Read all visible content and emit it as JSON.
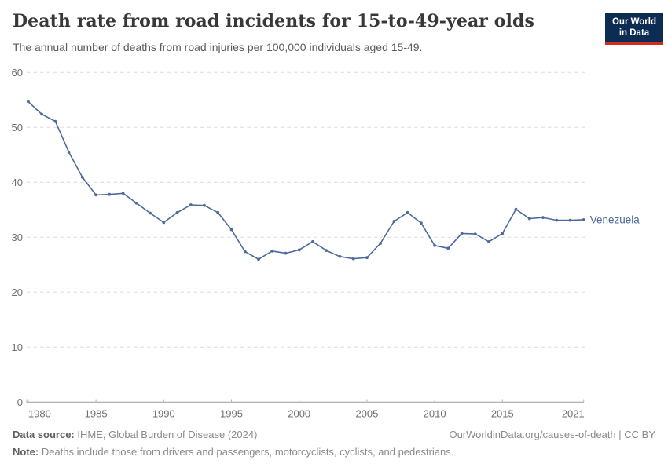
{
  "header": {
    "title": "Death rate from road incidents for 15-to-49-year olds",
    "subtitle": "The annual number of deaths from road injuries per 100,000 individuals aged 15-49.",
    "logo": {
      "line1": "Our World",
      "line2": "in Data"
    }
  },
  "chart_data": {
    "type": "line",
    "title": "Death rate from road incidents for 15-to-49-year olds",
    "subtitle": "The annual number of deaths from road injuries per 100,000 individuals aged 15-49.",
    "xlabel": "",
    "ylabel": "",
    "x": [
      1980,
      1981,
      1982,
      1983,
      1984,
      1985,
      1986,
      1987,
      1988,
      1989,
      1990,
      1991,
      1992,
      1993,
      1994,
      1995,
      1996,
      1997,
      1998,
      1999,
      2000,
      2001,
      2002,
      2003,
      2004,
      2005,
      2006,
      2007,
      2008,
      2009,
      2010,
      2011,
      2012,
      2013,
      2014,
      2015,
      2016,
      2017,
      2018,
      2019,
      2020,
      2021
    ],
    "series": [
      {
        "name": "Venezuela",
        "color": "#4C6A9C",
        "values": [
          54.7,
          52.4,
          51.1,
          45.5,
          40.9,
          37.7,
          37.8,
          38.0,
          36.2,
          34.4,
          32.7,
          34.5,
          35.9,
          35.8,
          34.5,
          31.4,
          27.4,
          26.0,
          27.5,
          27.1,
          27.7,
          29.2,
          27.6,
          26.5,
          26.1,
          26.3,
          28.9,
          32.9,
          34.5,
          32.6,
          28.5,
          28.0,
          30.7,
          30.6,
          29.2,
          30.7,
          35.1,
          33.4,
          33.6,
          33.1,
          33.1,
          33.2
        ]
      }
    ],
    "xlim": [
      1980,
      2021
    ],
    "ylim": [
      0,
      60
    ],
    "yticks": [
      0,
      10,
      20,
      30,
      40,
      50,
      60
    ],
    "xticks": [
      1980,
      1985,
      1990,
      1995,
      2000,
      2005,
      2010,
      2015,
      2021
    ],
    "grid": "horizontal-dashed",
    "legend_position": "end-of-line-label"
  },
  "colors": {
    "line": "#4C6A9C",
    "series_label": "#4C6A9C",
    "grid": "#dcdcdc",
    "axis": "#999999",
    "tick": "#b5b5b5",
    "tick_label": "#6e6e6e",
    "logo_bg": "#0d2c54",
    "logo_bar": "#d42b21"
  },
  "footer": {
    "source_label": "Data source:",
    "source_text": " IHME, Global Burden of Disease (2024)",
    "link": "OurWorldinData.org/causes-of-death | CC BY",
    "note_label": "Note:",
    "note_text": " Deaths include those from drivers and passengers, motorcyclists, cyclists, and pedestrians."
  }
}
